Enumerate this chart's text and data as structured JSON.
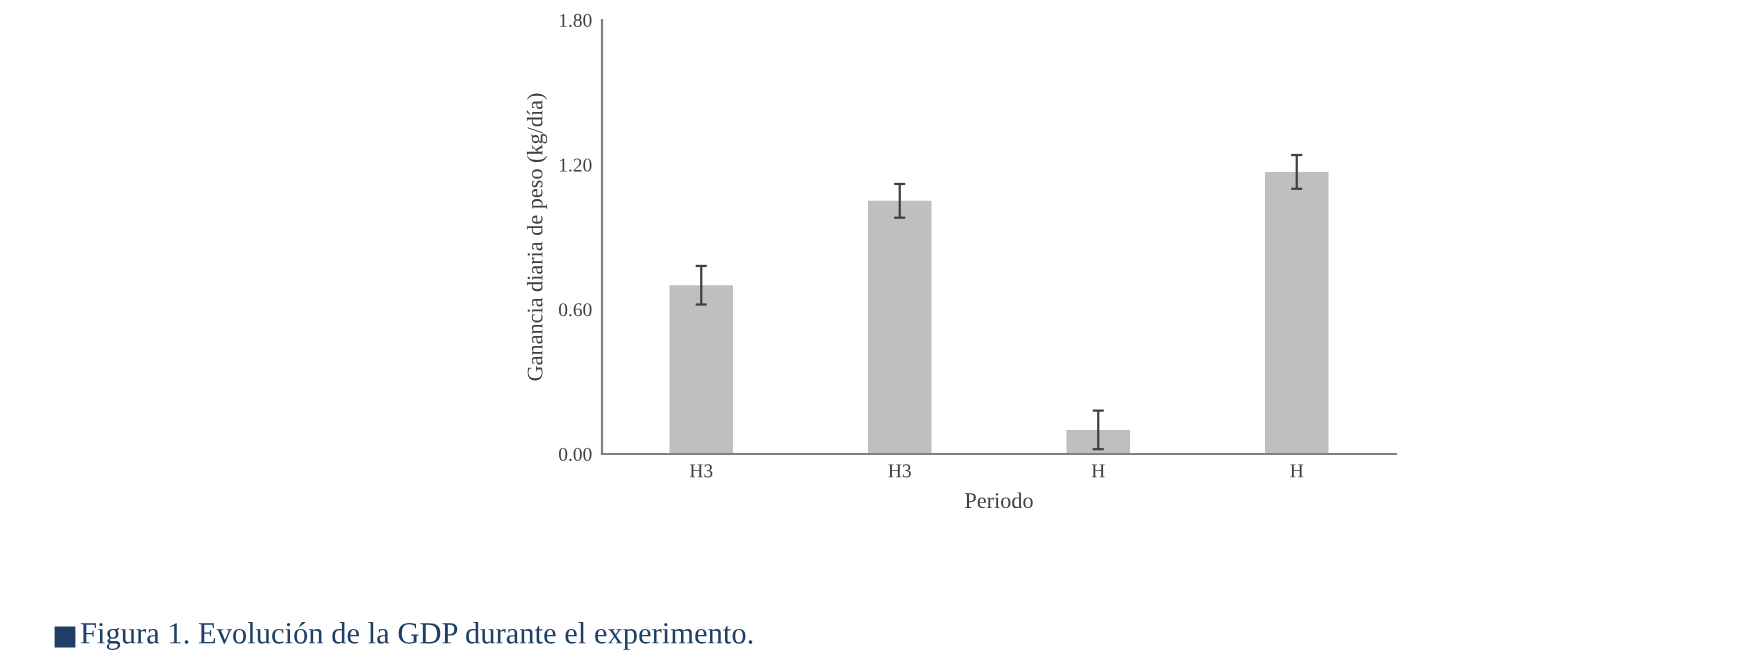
{
  "chart_data": {
    "type": "bar",
    "xlabel": "Periodo",
    "ylabel": "Ganancia diaria de peso (kg/día)",
    "categories": [
      "H3",
      "H3",
      "H",
      "H"
    ],
    "values": [
      0.7,
      1.05,
      0.1,
      1.17
    ],
    "errors": [
      0.08,
      0.07,
      0.08,
      0.07
    ],
    "color": "#bfbfbf",
    "ylim": [
      0,
      1.8
    ],
    "yticks": [
      {
        "value": 0,
        "label": "0.00"
      },
      {
        "value": 0.6,
        "label": "0.60"
      },
      {
        "value": 1.2,
        "label": "1.20"
      },
      {
        "value": 1.8,
        "label": "1.80"
      }
    ],
    "grid": false,
    "annotations": [
      "Figura 1. Evolución de la GDP durante el experimento."
    ]
  }
}
